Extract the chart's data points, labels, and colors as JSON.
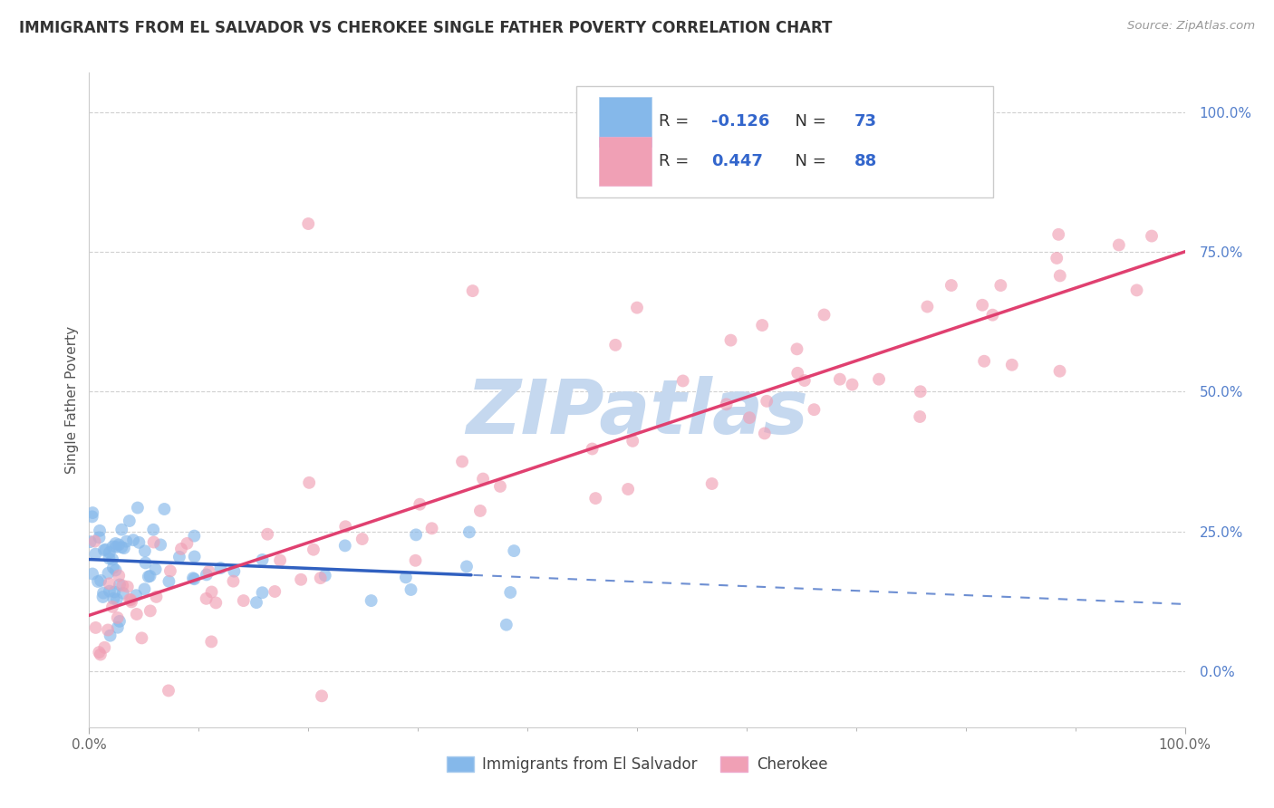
{
  "title": "IMMIGRANTS FROM EL SALVADOR VS CHEROKEE SINGLE FATHER POVERTY CORRELATION CHART",
  "source_text": "Source: ZipAtlas.com",
  "ylabel": "Single Father Poverty",
  "legend_label_blue": "Immigrants from El Salvador",
  "legend_label_pink": "Cherokee",
  "R_blue": -0.126,
  "N_blue": 73,
  "R_pink": 0.447,
  "N_pink": 88,
  "blue_color": "#85b8ea",
  "pink_color": "#f0a0b5",
  "blue_line_color": "#3060c0",
  "pink_line_color": "#e04070",
  "watermark": "ZIPatlas",
  "watermark_color": "#c5d8ef",
  "background_color": "#ffffff",
  "grid_color": "#d0d0d0",
  "title_fontsize": 12,
  "blue_intercept": 20.0,
  "blue_slope": -0.08,
  "pink_intercept": 10.0,
  "pink_slope": 0.65,
  "blue_solid_end": 35,
  "xlim": [
    0,
    100
  ],
  "ylim": [
    -10,
    107
  ],
  "yticks": [
    0,
    25,
    50,
    75,
    100
  ],
  "ytick_labels": [
    "0.0%",
    "25.0%",
    "50.0%",
    "75.0%",
    "100.0%"
  ],
  "xtick_positions": [
    0,
    100
  ],
  "xtick_labels": [
    "0.0%",
    "100.0%"
  ]
}
